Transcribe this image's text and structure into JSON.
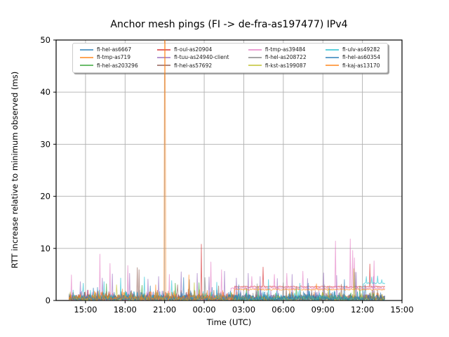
{
  "title": "Anchor mesh pings (FI -> de-fra-as197477) IPv4",
  "axes": {
    "xlabel": "Time (UTC)",
    "ylabel": "RTT increase relative to minimum observed (ms)",
    "x_start_hour": 12.77,
    "x_end_hour": 39.0,
    "y_min": 0,
    "y_max": 50,
    "xticks": [
      {
        "hour": 15,
        "label": "15:00"
      },
      {
        "hour": 18,
        "label": "18:00"
      },
      {
        "hour": 21,
        "label": "21:00"
      },
      {
        "hour": 24,
        "label": "00:00"
      },
      {
        "hour": 27,
        "label": "03:00"
      },
      {
        "hour": 30,
        "label": "06:00"
      },
      {
        "hour": 33,
        "label": "09:00"
      },
      {
        "hour": 36,
        "label": "12:00"
      },
      {
        "hour": 39,
        "label": "15:00"
      }
    ],
    "yticks": [
      0,
      10,
      20,
      30,
      40,
      50
    ],
    "grid": true
  },
  "style": {
    "background": "#ffffff",
    "grid_color": "#b0b0b0",
    "spine_color": "#000000",
    "text_color": "#000000",
    "series_alpha": 0.6,
    "legend_border_color": "#cccccc",
    "legend_columns": 4
  },
  "chart_data": {
    "type": "line",
    "x_unit": "UTC time, decimal hours (values >= 24 are the following day)",
    "y_unit": "ms",
    "data_start_hour": 13.75,
    "data_end_hour": 37.7,
    "series": [
      {
        "name": "fi-hel-as6667",
        "color": "#1f77b4",
        "baseline_noise_max": 1.1,
        "spikes": [
          [
            15.6,
            2.4
          ],
          [
            19.9,
            2.8
          ],
          [
            24.6,
            2.5
          ],
          [
            28.3,
            2.2
          ],
          [
            33.5,
            2.6
          ],
          [
            36.2,
            3.0
          ]
        ],
        "constant_levels": []
      },
      {
        "name": "fi-tmp-as719",
        "color": "#ff7f0e",
        "baseline_noise_max": 1.0,
        "spikes": [
          [
            17.8,
            2.2
          ],
          [
            20.98,
            55
          ],
          [
            21.02,
            55
          ],
          [
            21.06,
            55
          ],
          [
            30.5,
            2.0
          ]
        ],
        "constant_levels": []
      },
      {
        "name": "fi-hel-as203296",
        "color": "#2ca02c",
        "baseline_noise_max": 0.9,
        "spikes": [
          [
            16.6,
            3.2
          ],
          [
            19.3,
            2.9
          ],
          [
            21.8,
            3.3
          ],
          [
            23.6,
            3.4
          ],
          [
            27.2,
            2.4
          ],
          [
            31.0,
            2.6
          ],
          [
            35.8,
            2.8
          ]
        ],
        "constant_levels": []
      },
      {
        "name": "fi-oul-as20904",
        "color": "#d62728",
        "baseline_noise_max": 1.0,
        "spikes": [
          [
            15.2,
            2.0
          ],
          [
            23.78,
            10.8
          ],
          [
            28.45,
            6.4
          ],
          [
            36.55,
            7.0
          ]
        ],
        "constant_levels": [
          [
            26.3,
            37.7,
            2.65
          ]
        ]
      },
      {
        "name": "fi-tuu-as24940-client",
        "color": "#9467bd",
        "baseline_noise_max": 1.2,
        "spikes": [
          [
            14.6,
            3.6
          ],
          [
            16.25,
            4.3
          ],
          [
            17.05,
            5.1
          ],
          [
            18.35,
            5.2
          ],
          [
            19.75,
            4.1
          ],
          [
            20.55,
            4.6
          ],
          [
            22.25,
            5.5
          ],
          [
            23.45,
            5.2
          ],
          [
            24.35,
            4.5
          ],
          [
            25.55,
            5.6
          ],
          [
            26.45,
            4.3
          ],
          [
            27.35,
            5.2
          ],
          [
            28.25,
            4.6
          ],
          [
            29.55,
            4.2
          ],
          [
            30.65,
            5.0
          ],
          [
            31.85,
            4.2
          ],
          [
            33.05,
            5.3
          ],
          [
            34.05,
            4.8
          ],
          [
            35.55,
            5.4
          ],
          [
            36.85,
            4.6
          ]
        ],
        "constant_levels": []
      },
      {
        "name": "fi-hel-as57692",
        "color": "#8c564b",
        "baseline_noise_max": 1.3,
        "spikes": [
          [
            18.92,
            6.3
          ],
          [
            19.06,
            5.9
          ],
          [
            22.0,
            3.0
          ],
          [
            25.1,
            2.8
          ],
          [
            30.2,
            2.6
          ],
          [
            34.4,
            3.1
          ]
        ],
        "constant_levels": []
      },
      {
        "name": "fi-tmp-as39484",
        "color": "#e377c2",
        "baseline_noise_max": 1.0,
        "spikes": [
          [
            13.95,
            4.9
          ],
          [
            16.1,
            8.9
          ],
          [
            16.85,
            7.1
          ],
          [
            18.2,
            6.7
          ],
          [
            21.35,
            5.0
          ],
          [
            24.5,
            7.4
          ],
          [
            25.3,
            5.9
          ],
          [
            27.6,
            4.6
          ],
          [
            29.3,
            5.0
          ],
          [
            30.25,
            5.2
          ],
          [
            31.5,
            5.6
          ],
          [
            33.95,
            11.4
          ],
          [
            35.1,
            11.8
          ],
          [
            35.25,
            9.6
          ],
          [
            35.4,
            8.2
          ],
          [
            36.9,
            7.6
          ]
        ],
        "constant_levels": [
          [
            26.0,
            37.7,
            2.35
          ]
        ]
      },
      {
        "name": "fi-hel-as208722",
        "color": "#7f7f7f",
        "baseline_noise_max": 1.2,
        "spikes": [
          [
            22.9,
            4.0
          ],
          [
            24.05,
            4.4
          ],
          [
            28.0,
            3.2
          ],
          [
            30.0,
            3.4
          ],
          [
            33.1,
            3.0
          ],
          [
            35.45,
            5.4
          ]
        ],
        "constant_levels": []
      },
      {
        "name": "fi-kst-as199087",
        "color": "#bcbd22",
        "baseline_noise_max": 1.0,
        "spikes": [
          [
            17.35,
            3.0
          ],
          [
            23.25,
            3.4
          ],
          [
            28.1,
            2.7
          ],
          [
            33.4,
            2.5
          ],
          [
            35.35,
            6.1
          ]
        ],
        "constant_levels": []
      },
      {
        "name": "fi-ulv-as49282",
        "color": "#17becf",
        "baseline_noise_max": 1.2,
        "spikes": [
          [
            14.85,
            3.3
          ],
          [
            16.4,
            3.6
          ],
          [
            17.65,
            4.3
          ],
          [
            19.45,
            4.5
          ],
          [
            21.55,
            3.8
          ],
          [
            24.95,
            3.5
          ],
          [
            28.85,
            4.0
          ],
          [
            31.25,
            3.3
          ],
          [
            36.3,
            4.6
          ],
          [
            36.7,
            4.5
          ],
          [
            37.15,
            4.7
          ],
          [
            37.45,
            4.0
          ]
        ],
        "constant_levels": [
          [
            36.05,
            37.7,
            3.3
          ]
        ]
      },
      {
        "name": "fi-hel-as60354",
        "color": "#1f77b4",
        "baseline_noise_max": 1.1,
        "spikes": [
          [
            15.9,
            2.5
          ],
          [
            22.45,
            4.4
          ],
          [
            26.6,
            3.0
          ],
          [
            31.9,
            3.3
          ],
          [
            34.65,
            4.0
          ]
        ],
        "constant_levels": []
      },
      {
        "name": "fi-kaj-as13170",
        "color": "#ff7f0e",
        "baseline_noise_max": 1.2,
        "spikes": [
          [
            20.3,
            3.0
          ],
          [
            22.85,
            4.9
          ],
          [
            32.5,
            3.2
          ]
        ],
        "constant_levels": [
          [
            26.3,
            37.7,
            2.1
          ]
        ]
      }
    ]
  }
}
